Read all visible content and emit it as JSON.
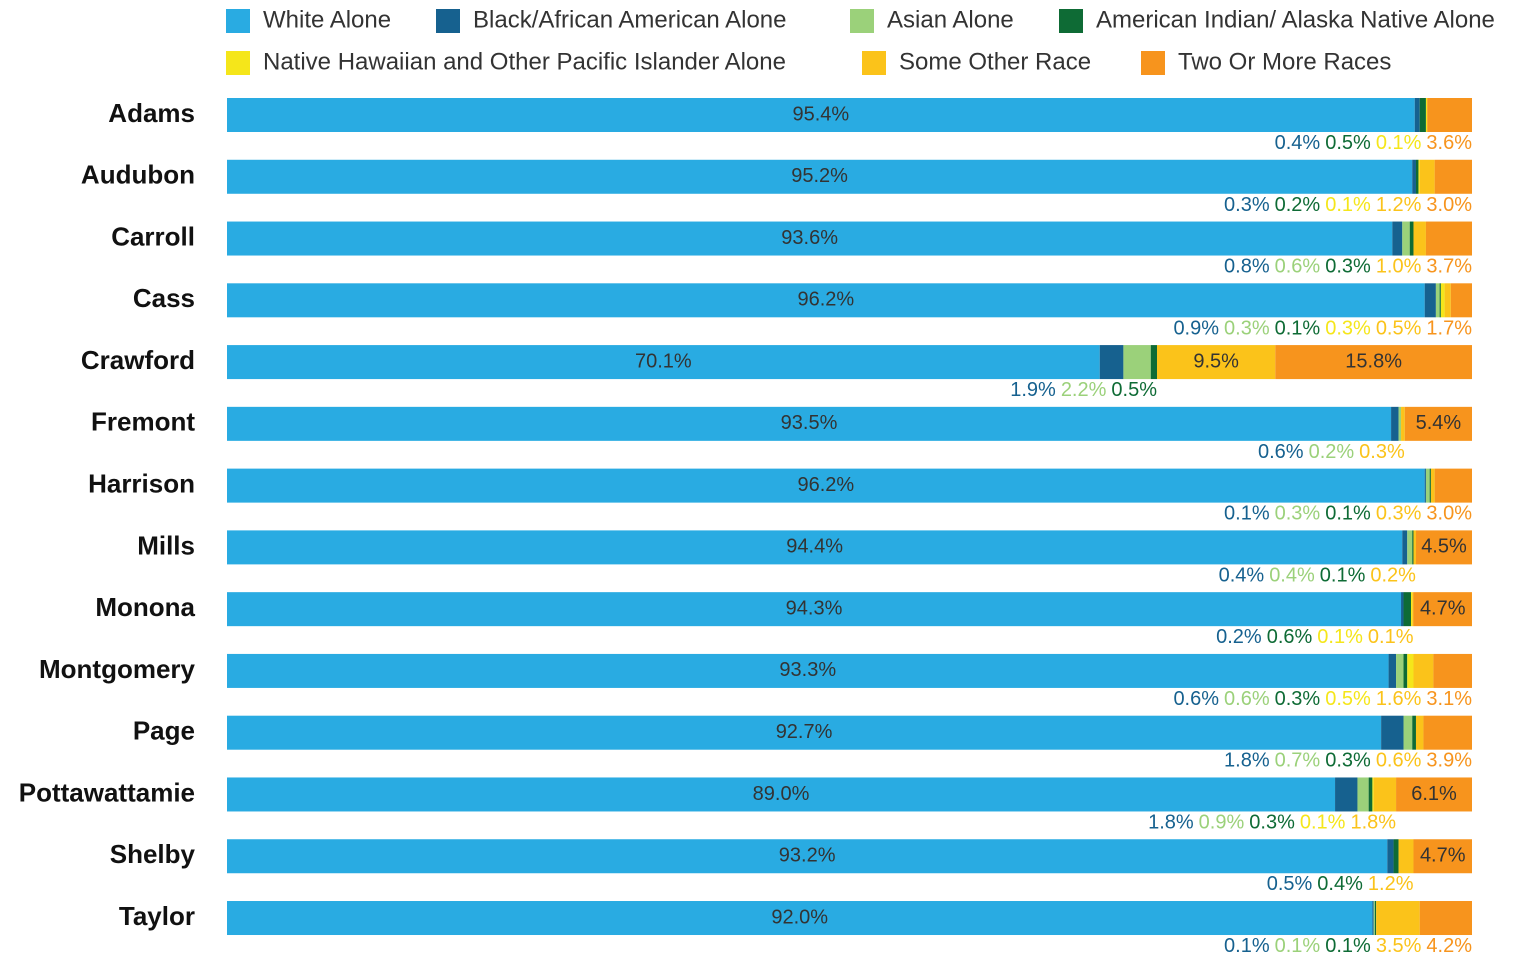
{
  "chart_data": {
    "type": "stacked-bar-horizontal",
    "categories": [
      "Adams",
      "Audubon",
      "Carroll",
      "Cass",
      "Crawford",
      "Fremont",
      "Harrison",
      "Mills",
      "Monona",
      "Montgomery",
      "Page",
      "Pottawattamie",
      "Shelby",
      "Taylor"
    ],
    "xlim": [
      0,
      100
    ],
    "series": [
      {
        "name": "White Alone",
        "color": "#29abe2",
        "values": [
          95.4,
          95.2,
          93.6,
          96.2,
          70.1,
          93.5,
          96.2,
          94.4,
          94.3,
          93.3,
          92.7,
          89.0,
          93.2,
          92.0
        ],
        "value_labels": [
          "95.4%",
          "95.2%",
          "93.6%",
          "96.2%",
          "70.1%",
          "93.5%",
          "96.2%",
          "94.4%",
          "94.3%",
          "93.3%",
          "92.7%",
          "89.0%",
          "93.2%",
          "92.0%"
        ]
      },
      {
        "name": "Black/African American Alone",
        "color": "#16618f",
        "values": [
          0.4,
          0.3,
          0.8,
          0.9,
          1.9,
          0.6,
          0.1,
          0.4,
          0.2,
          0.6,
          1.8,
          1.8,
          0.5,
          0.1
        ],
        "value_labels": [
          "0.4%",
          "0.3%",
          "0.8%",
          "0.9%",
          "1.9%",
          "0.6%",
          "0.1%",
          "0.4%",
          "0.2%",
          "0.6%",
          "1.8%",
          "1.8%",
          "0.5%",
          "0.1%"
        ]
      },
      {
        "name": "Asian Alone",
        "color": "#9bd17a",
        "values": [
          null,
          null,
          0.6,
          0.3,
          2.2,
          0.2,
          0.3,
          0.4,
          null,
          0.6,
          0.7,
          0.9,
          null,
          0.1
        ],
        "value_labels": [
          null,
          null,
          "0.6%",
          "0.3%",
          "2.2%",
          "0.2%",
          "0.3%",
          "0.4%",
          null,
          "0.6%",
          "0.7%",
          "0.9%",
          null,
          "0.1%"
        ]
      },
      {
        "name": "American Indian/ Alaska Native Alone",
        "color": "#0e6b35",
        "values": [
          0.5,
          0.2,
          0.3,
          0.1,
          0.5,
          null,
          0.1,
          0.1,
          0.6,
          0.3,
          0.3,
          0.3,
          0.4,
          0.1
        ],
        "value_labels": [
          "0.5%",
          "0.2%",
          "0.3%",
          "0.1%",
          "0.5%",
          null,
          "0.1%",
          "0.1%",
          "0.6%",
          "0.3%",
          "0.3%",
          "0.3%",
          "0.4%",
          "0.1%"
        ]
      },
      {
        "name": "Native Hawaiian and Other Pacific Islander Alone",
        "color": "#f5e61a",
        "values": [
          0.1,
          0.1,
          null,
          0.3,
          null,
          null,
          null,
          null,
          0.1,
          0.5,
          null,
          0.1,
          null,
          null
        ],
        "value_labels": [
          "0.1%",
          "0.1%",
          null,
          "0.3%",
          null,
          null,
          null,
          null,
          "0.1%",
          "0.5%",
          null,
          "0.1%",
          null,
          null
        ]
      },
      {
        "name": "Some Other Race",
        "color": "#fbc31a",
        "values": [
          null,
          1.2,
          1.0,
          0.5,
          9.5,
          0.3,
          0.3,
          0.2,
          0.1,
          1.6,
          0.6,
          1.8,
          1.2,
          3.5
        ],
        "value_labels": [
          null,
          "1.2%",
          "1.0%",
          "0.5%",
          "9.5%",
          "0.3%",
          "0.3%",
          "0.2%",
          "0.1%",
          "1.6%",
          "0.6%",
          "1.8%",
          "1.2%",
          "3.5%"
        ]
      },
      {
        "name": "Two Or More Races",
        "color": "#f7941d",
        "values": [
          3.6,
          3.0,
          3.7,
          1.7,
          15.8,
          5.4,
          3.0,
          4.5,
          4.7,
          3.1,
          3.9,
          6.1,
          4.7,
          4.2
        ],
        "value_labels": [
          "3.6%",
          "3.0%",
          "3.7%",
          "1.7%",
          "15.8%",
          "5.4%",
          "3.0%",
          "4.5%",
          "4.7%",
          "3.1%",
          "3.9%",
          "6.1%",
          "4.7%",
          "4.2%"
        ]
      }
    ]
  }
}
